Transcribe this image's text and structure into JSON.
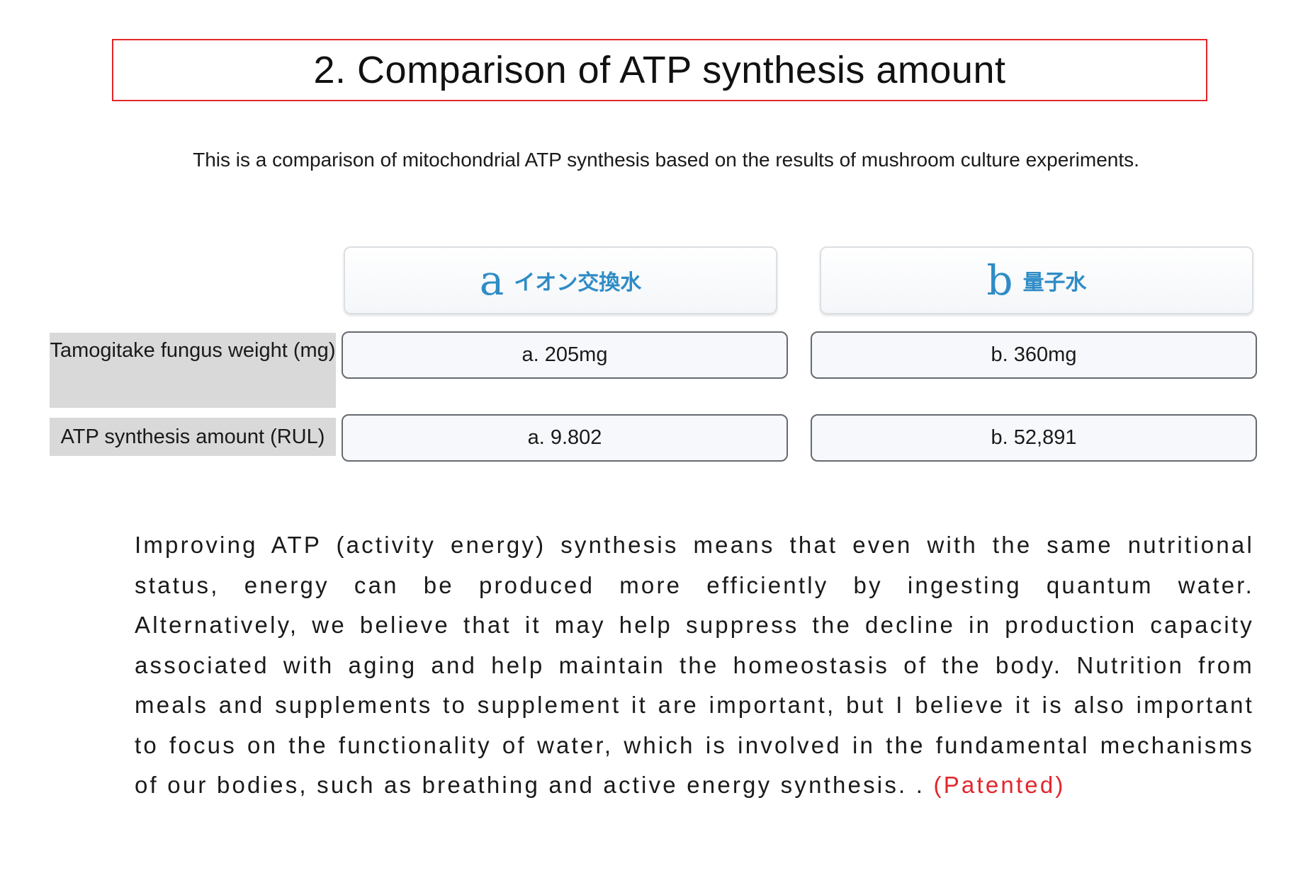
{
  "title": "2. Comparison of ATP synthesis amount",
  "intro": "This is a comparison of mitochondrial ATP synthesis based on the results of mushroom culture experiments.",
  "columns": [
    {
      "letter": "a",
      "name": "イオン交換水"
    },
    {
      "letter": "b",
      "name": "量子水"
    }
  ],
  "rows": [
    {
      "label": "Tamogitake fungus weight (mg)",
      "values": [
        "a. 205mg",
        "b. 360mg"
      ]
    },
    {
      "label": "ATP synthesis amount (RUL)",
      "values": [
        "a. 9.802",
        "b. 52,891"
      ]
    }
  ],
  "body": {
    "text": "Improving ATP (activity energy) synthesis means that even with the same nutritional status, energy can be produced more efficiently by ingesting quantum water. Alternatively, we believe that it may help suppress the decline in production capacity associated with aging and help maintain the homeostasis of the body. Nutrition from meals and supplements to supplement it are important, but I believe it is also important to focus on the functionality of water, which is involved in the fundamental mechanisms of our bodies, such as breathing and active energy synthesis. . ",
    "patent_note": "(Patented)"
  },
  "colors": {
    "accent_red": "#e3262b",
    "column_blue": "#2f8cc6",
    "label_gray": "#d9d9d9"
  }
}
